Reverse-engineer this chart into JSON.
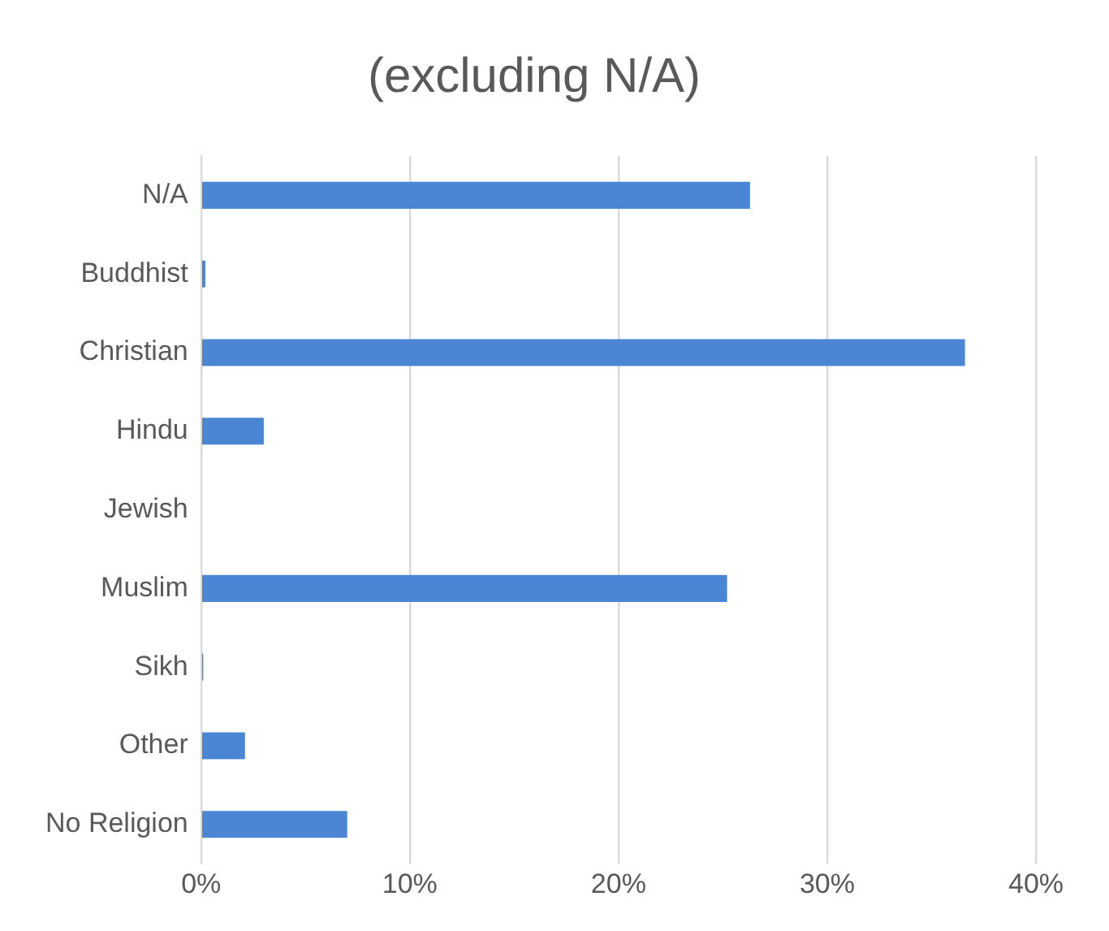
{
  "chart_data": {
    "type": "bar",
    "orientation": "horizontal",
    "title": "(excluding N/A)",
    "categories": [
      "N/A",
      "Buddhist",
      "Christian",
      "Hindu",
      "Jewish",
      "Muslim",
      "Sikh",
      "Other",
      "No Religion"
    ],
    "values": [
      26.3,
      0.2,
      36.6,
      3.0,
      0,
      25.2,
      0.1,
      2.1,
      7.0
    ],
    "color": "#4a86d4",
    "xlim": [
      0,
      40
    ],
    "xticks": [
      {
        "value": 0,
        "label": "0%"
      },
      {
        "value": 10,
        "label": "10%"
      },
      {
        "value": 20,
        "label": "20%"
      },
      {
        "value": 30,
        "label": "30%"
      },
      {
        "value": 40,
        "label": "40%"
      }
    ],
    "grid": "x",
    "legend": false
  }
}
